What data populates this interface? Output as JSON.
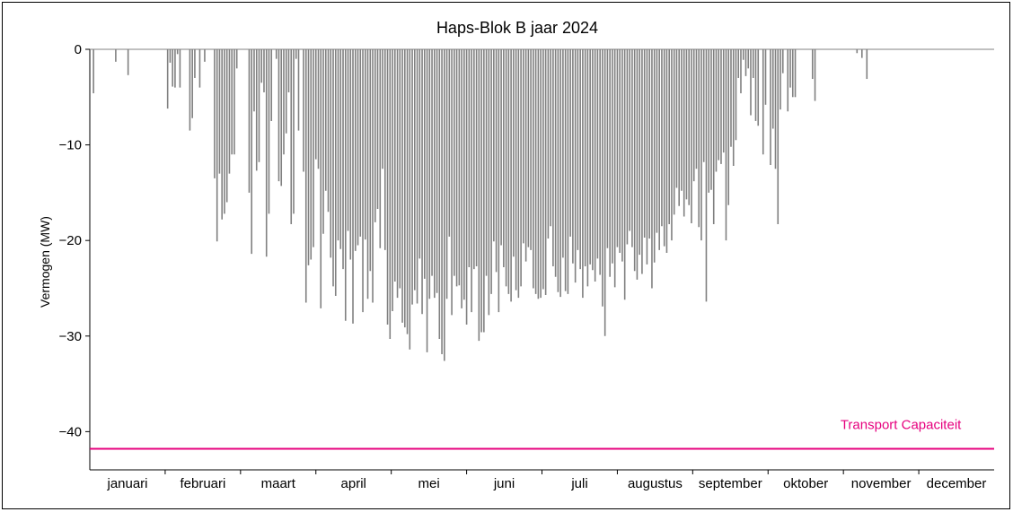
{
  "chart_data": {
    "type": "bar",
    "title": "Haps-Blok B jaar 2024",
    "xlabel": "",
    "ylabel": "Vermogen (MW)",
    "ylim": [
      -44,
      0
    ],
    "yticks": [
      0,
      -10,
      -20,
      -30,
      -40
    ],
    "ytick_labels": [
      "0",
      "−10",
      "−20",
      "−30",
      "−40"
    ],
    "months": [
      "januari",
      "februari",
      "maart",
      "april",
      "mei",
      "juni",
      "juli",
      "augustus",
      "september",
      "oktober",
      "november",
      "december"
    ],
    "bar_color": "#808080",
    "daily_peak_mw": [
      0,
      -4.6,
      0,
      0,
      0,
      0,
      0,
      0,
      0,
      0,
      -1.3,
      0,
      0,
      0,
      0,
      -2.7,
      0,
      0,
      0,
      0,
      0,
      0,
      0,
      0,
      0,
      0,
      0,
      0,
      0,
      0,
      0,
      -6.2,
      -1.4,
      -3.9,
      -4.0,
      -0.5,
      -4.0,
      0,
      0,
      0,
      -8.5,
      -7.2,
      -3.0,
      0,
      -4.0,
      0,
      -1.3,
      0,
      0,
      0,
      -13.5,
      -20.1,
      -13.0,
      -17.8,
      -17.2,
      -16.0,
      -13.0,
      -11.0,
      -11.0,
      -2.0,
      0,
      0,
      0,
      0,
      -15.0,
      -21.4,
      -6.5,
      -12.7,
      -11.8,
      -3.5,
      -4.5,
      -21.7,
      -17.2,
      -7.5,
      0,
      -1.0,
      -13.8,
      -14.3,
      -11.0,
      -8.8,
      -4.5,
      -18.3,
      -17.2,
      -1.0,
      -8.5,
      0,
      -12.8,
      -26.5,
      -22.6,
      -22.0,
      -20.7,
      -11.5,
      -12.5,
      -27.1,
      -19.3,
      -14.8,
      -17.0,
      -21.8,
      -24.8,
      -25.8,
      -20.0,
      -20.9,
      -23.0,
      -28.4,
      -19.0,
      -22.0,
      -28.7,
      -21.1,
      -20.5,
      -19.6,
      -27.5,
      -19.9,
      -26.1,
      -23.2,
      -26.5,
      -18.1,
      -16.7,
      -20.8,
      -12.5,
      -21.0,
      -28.8,
      -30.3,
      -27.4,
      -24.3,
      -26.0,
      -25.0,
      -28.6,
      -29.1,
      -29.8,
      -31.4,
      -26.7,
      -25.2,
      -26.6,
      -21.9,
      -27.7,
      -24.0,
      -31.7,
      -26.1,
      -23.7,
      -26.0,
      -25.5,
      -30.3,
      -31.9,
      -32.6,
      -26.1,
      -19.6,
      -27.8,
      -23.7,
      -24.8,
      -24.7,
      -27.1,
      -26.2,
      -28.8,
      -22.8,
      -27.5,
      -23.0,
      -22.7,
      -30.5,
      -29.6,
      -29.6,
      -23.7,
      -27.8,
      -25.6,
      -20.1,
      -23.3,
      -27.5,
      -20.5,
      -22.8,
      -24.8,
      -25.6,
      -26.4,
      -21.7,
      -25.2,
      -26.0,
      -24.8,
      -20.3,
      -22.2,
      -20.7,
      -21.0,
      -25.0,
      -25.6,
      -26.1,
      -26.0,
      -25.1,
      -25.7,
      -19.8,
      -18.5,
      -22.7,
      -23.8,
      -25.4,
      -25.9,
      -21.8,
      -25.3,
      -25.6,
      -19.6,
      -22.4,
      -24.4,
      -21.0,
      -23.0,
      -26.0,
      -22.7,
      -24.8,
      -22.5,
      -23.1,
      -24.3,
      -21.9,
      -23.6,
      -26.9,
      -30.0,
      -20.8,
      -23.8,
      -22.4,
      -24.9,
      -20.7,
      -21.3,
      -22.2,
      -26.2,
      -20.4,
      -19.0,
      -20.7,
      -23.2,
      -24.1,
      -21.5,
      -23.5,
      -19.7,
      -22.5,
      -19.8,
      -25.0,
      -22.3,
      -19.2,
      -21.0,
      -18.5,
      -20.6,
      -21.3,
      -18.3,
      -20.0,
      -17.3,
      -14.5,
      -16.4,
      -14.8,
      -17.5,
      -15.7,
      -16.3,
      -18.2,
      -13.8,
      -12.5,
      -18.6,
      -20.0,
      -11.8,
      -26.4,
      -15.0,
      -14.7,
      -18.3,
      -12.8,
      -11.6,
      -12.0,
      -10.8,
      -20.0,
      -16.3,
      -10.2,
      -12.2,
      -9.5,
      -3.0,
      -4.6,
      -1.1,
      -2.8,
      -2.0,
      -6.9,
      -3.0,
      -7.5,
      -8.0,
      0,
      -11.0,
      -5.8,
      0,
      -12.1,
      -8.3,
      -12.5,
      -18.3,
      -6.3,
      -2.5,
      0,
      -6.5,
      -4.0,
      -5.0,
      -5.0,
      0,
      0,
      0,
      0,
      0,
      0,
      -3.1,
      -5.4,
      0,
      0,
      0,
      0,
      0,
      0,
      0,
      0,
      0,
      0,
      0,
      0,
      0,
      0,
      0,
      0,
      -0.4,
      0,
      -0.9,
      0,
      -3.1,
      0,
      0,
      0,
      0,
      0,
      0,
      0,
      0,
      0,
      0,
      0,
      0,
      0,
      0,
      0,
      0,
      0,
      0,
      0,
      0,
      0,
      0,
      0,
      0,
      0,
      0,
      0,
      0,
      0,
      0,
      0,
      0,
      0,
      0,
      0,
      0,
      0,
      0,
      0,
      0,
      0,
      0,
      0,
      0,
      0,
      0,
      0,
      0,
      0,
      0,
      0
    ],
    "annotations": [
      {
        "type": "hline",
        "y": -41.8,
        "label": "Transport Capaciteit",
        "color": "#e6007e"
      }
    ],
    "grid": false,
    "legend": "none"
  }
}
